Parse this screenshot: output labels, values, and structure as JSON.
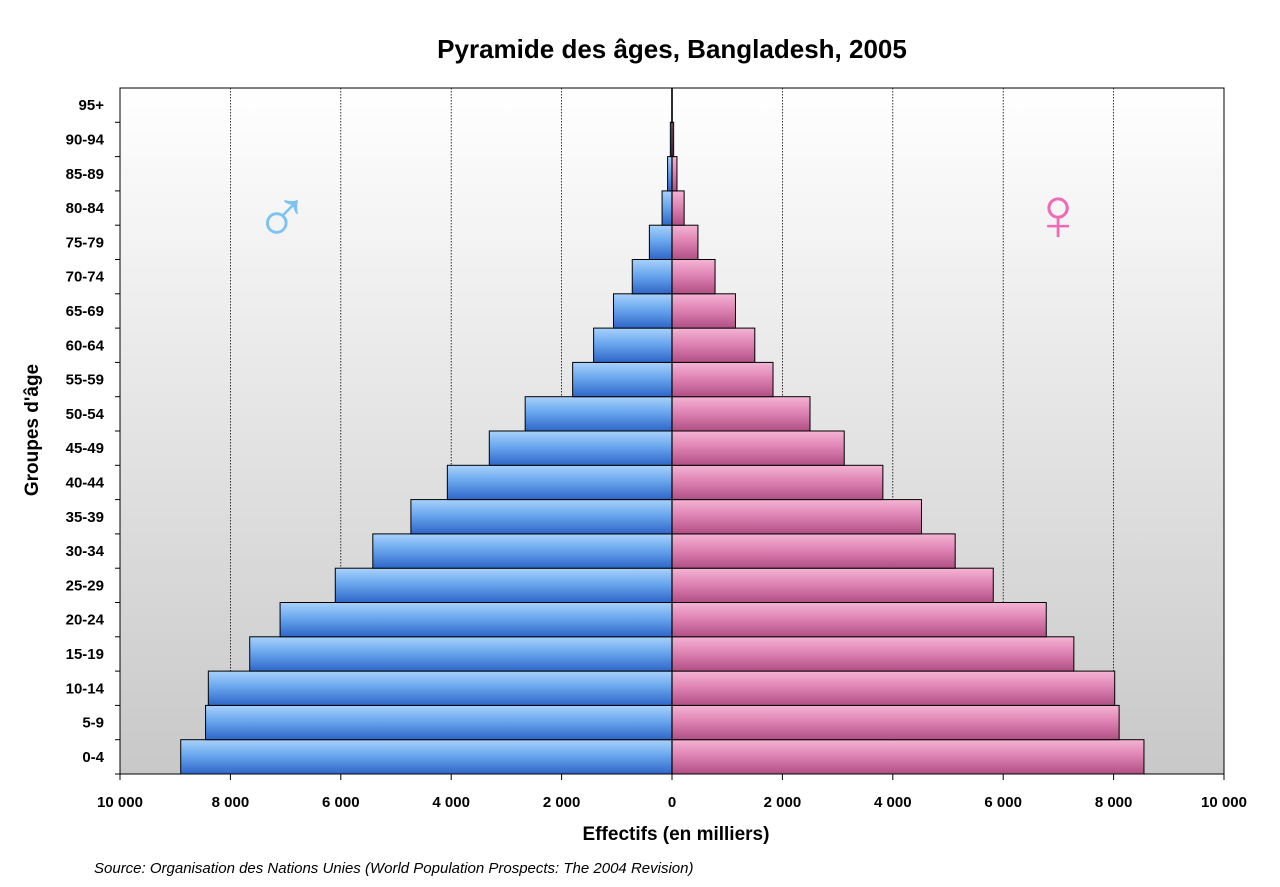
{
  "chart_data": {
    "type": "bar",
    "orientation": "horizontal",
    "title": "Pyramide des âges, Bangladesh, 2005",
    "xlabel": "Effectifs (en milliers)",
    "ylabel": "Groupes d'âge",
    "source": "Source: Organisation des Nations Unies (World Population Prospects: The 2004 Revision)",
    "xlim": [
      -10000,
      10000
    ],
    "xticks": [
      -10000,
      -8000,
      -6000,
      -4000,
      -2000,
      0,
      2000,
      4000,
      6000,
      8000,
      10000
    ],
    "xtick_labels": [
      "10 000",
      "8 000",
      "6 000",
      "4 000",
      "2 000",
      "0",
      "2 000",
      "4 000",
      "6 000",
      "8 000",
      "10 000"
    ],
    "categories": [
      "0-4",
      "5-9",
      "10-14",
      "15-19",
      "20-24",
      "25-29",
      "30-34",
      "35-39",
      "40-44",
      "45-49",
      "50-54",
      "55-59",
      "60-64",
      "65-69",
      "70-74",
      "75-79",
      "80-84",
      "85-89",
      "90-94",
      "95+"
    ],
    "series": [
      {
        "symbol": "♂",
        "color": "#4a8fe0",
        "side": "left",
        "values": [
          8900,
          8450,
          8400,
          7650,
          7100,
          6100,
          5420,
          4730,
          4070,
          3310,
          2660,
          1800,
          1420,
          1060,
          720,
          410,
          180,
          80,
          30,
          5
        ]
      },
      {
        "symbol": "♀",
        "color": "#e27db0",
        "side": "right",
        "values": [
          8550,
          8100,
          8020,
          7280,
          6780,
          5820,
          5130,
          4520,
          3820,
          3120,
          2500,
          1830,
          1500,
          1150,
          780,
          470,
          220,
          90,
          30,
          5
        ]
      }
    ],
    "grid": true,
    "legend": "none"
  },
  "colors": {
    "male": "#4a8fe0",
    "female": "#e27db0",
    "male_symbol": "#7cc3f2",
    "female_symbol": "#f06ab8"
  }
}
